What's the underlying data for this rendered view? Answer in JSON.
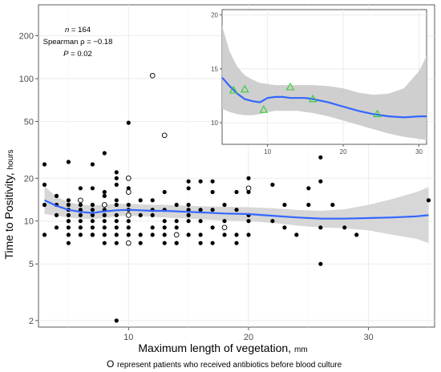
{
  "chart_data": [
    {
      "type": "scatter",
      "scale_y": "log",
      "xlim": [
        2.5,
        35.5
      ],
      "ylim": [
        1.8,
        330
      ],
      "x_ticks": [
        10,
        20,
        30
      ],
      "y_ticks": [
        2,
        5,
        10,
        20,
        50,
        100,
        200
      ],
      "xlabel": "Maximum length of vegetation,",
      "xlabel_unit": "mm",
      "ylabel": "Time to Positivity,",
      "ylabel_unit": "hours",
      "grid": true,
      "annotation": {
        "n": "n = 164",
        "rho": "Spearman ρ = −0.18",
        "p": "P = 0.02"
      },
      "footnote": {
        "symbol": "O",
        "text": "represent patients who received antibiotics before blood culture"
      },
      "series": [
        {
          "marker": "filled-circle",
          "points": [
            [
              3,
              25
            ],
            [
              3,
              18
            ],
            [
              3,
              13
            ],
            [
              3,
              8
            ],
            [
              4,
              9
            ],
            [
              4,
              15
            ],
            [
              4,
              11
            ],
            [
              4,
              13
            ],
            [
              5,
              14
            ],
            [
              5,
              26
            ],
            [
              5,
              12
            ],
            [
              5,
              10
            ],
            [
              5,
              8
            ],
            [
              5,
              13
            ],
            [
              5,
              11
            ],
            [
              5,
              9
            ],
            [
              5,
              7
            ],
            [
              5,
              10
            ],
            [
              6,
              14
            ],
            [
              6,
              11
            ],
            [
              6,
              9
            ],
            [
              6,
              13
            ],
            [
              6,
              12
            ],
            [
              6,
              10
            ],
            [
              6,
              8
            ],
            [
              6,
              17
            ],
            [
              7,
              25
            ],
            [
              7,
              17
            ],
            [
              7,
              11
            ],
            [
              7,
              9
            ],
            [
              7,
              13
            ],
            [
              7,
              8
            ],
            [
              7,
              10
            ],
            [
              7,
              12
            ],
            [
              7,
              8
            ],
            [
              8,
              30
            ],
            [
              8,
              16
            ],
            [
              8,
              13
            ],
            [
              8,
              11
            ],
            [
              8,
              9
            ],
            [
              8,
              10
            ],
            [
              8,
              7
            ],
            [
              8,
              12
            ],
            [
              8,
              15
            ],
            [
              8,
              8
            ],
            [
              9,
              22
            ],
            [
              9,
              20
            ],
            [
              9,
              18
            ],
            [
              9,
              14
            ],
            [
              9,
              10
            ],
            [
              9,
              9
            ],
            [
              9,
              13
            ],
            [
              9,
              11
            ],
            [
              9,
              2
            ],
            [
              9,
              7
            ],
            [
              9,
              8
            ],
            [
              10,
              49
            ],
            [
              10,
              17
            ],
            [
              10,
              13
            ],
            [
              10,
              12
            ],
            [
              10,
              10
            ],
            [
              10,
              8
            ],
            [
              10,
              9
            ],
            [
              10,
              11
            ],
            [
              10,
              7
            ],
            [
              11,
              14
            ],
            [
              11,
              11
            ],
            [
              11,
              8
            ],
            [
              11,
              7
            ],
            [
              12,
              12
            ],
            [
              12,
              9
            ],
            [
              12,
              8
            ],
            [
              12,
              14
            ],
            [
              12,
              11
            ],
            [
              13,
              16
            ],
            [
              13,
              12
            ],
            [
              13,
              10
            ],
            [
              13,
              9
            ],
            [
              13,
              7
            ],
            [
              13,
              8
            ],
            [
              14,
              13
            ],
            [
              14,
              9
            ],
            [
              14,
              7
            ],
            [
              14,
              10
            ],
            [
              14,
              8
            ],
            [
              14,
              7
            ],
            [
              15,
              19
            ],
            [
              15,
              17
            ],
            [
              15,
              13
            ],
            [
              15,
              12
            ],
            [
              15,
              10
            ],
            [
              15,
              8
            ],
            [
              15,
              11
            ],
            [
              16,
              19
            ],
            [
              16,
              12
            ],
            [
              16,
              10
            ],
            [
              16,
              8
            ],
            [
              16,
              7
            ],
            [
              17,
              19
            ],
            [
              17,
              16
            ],
            [
              17,
              12
            ],
            [
              17,
              9
            ],
            [
              17,
              7
            ],
            [
              18,
              13
            ],
            [
              18,
              10
            ],
            [
              18,
              8
            ],
            [
              19,
              16
            ],
            [
              19,
              12
            ],
            [
              19,
              8
            ],
            [
              19,
              7
            ],
            [
              20,
              20
            ],
            [
              20,
              16
            ],
            [
              20,
              11
            ],
            [
              20,
              10
            ],
            [
              20,
              8
            ],
            [
              22,
              18
            ],
            [
              22,
              10
            ],
            [
              23,
              13
            ],
            [
              23,
              9
            ],
            [
              24,
              8
            ],
            [
              25,
              17
            ],
            [
              25,
              13
            ],
            [
              26,
              28
            ],
            [
              26,
              19
            ],
            [
              26,
              9
            ],
            [
              26,
              5
            ],
            [
              27,
              13
            ],
            [
              28,
              9
            ],
            [
              29,
              8
            ],
            [
              35,
              14
            ]
          ]
        },
        {
          "marker": "open-circle",
          "points": [
            [
              6,
              14
            ],
            [
              8,
              13
            ],
            [
              10,
              20
            ],
            [
              10,
              16
            ],
            [
              10,
              11
            ],
            [
              10,
              7
            ],
            [
              12,
              105
            ],
            [
              13,
              40
            ],
            [
              14,
              8
            ],
            [
              18,
              9
            ],
            [
              20,
              17
            ]
          ]
        },
        {
          "type": "line",
          "name": "smooth",
          "x": [
            3,
            4,
            5,
            6,
            7,
            8,
            9,
            10,
            11,
            12,
            13,
            14,
            15,
            16,
            18,
            20,
            22,
            24,
            26,
            28,
            30,
            32,
            34,
            35
          ],
          "y": [
            14,
            12.8,
            12.0,
            11.6,
            11.4,
            11.7,
            11.9,
            12.0,
            11.9,
            11.8,
            11.8,
            11.7,
            11.6,
            11.5,
            11.3,
            11.2,
            10.9,
            10.6,
            10.4,
            10.4,
            10.5,
            10.6,
            10.8,
            11.0
          ]
        },
        {
          "type": "area",
          "name": "confidence band",
          "x": [
            3,
            4,
            5,
            6,
            7,
            8,
            9,
            10,
            11,
            12,
            13,
            14,
            15,
            16,
            18,
            20,
            22,
            24,
            26,
            28,
            30,
            32,
            34,
            35
          ],
          "upper": [
            17.5,
            14.8,
            13.6,
            13.0,
            12.9,
            13.0,
            13.2,
            13.2,
            13.1,
            13.0,
            13.0,
            12.9,
            12.8,
            12.7,
            12.6,
            12.5,
            12.3,
            12.0,
            11.8,
            12.1,
            13.0,
            14.3,
            16.0,
            17.3
          ],
          "lower": [
            11.2,
            10.9,
            10.6,
            10.4,
            10.3,
            10.5,
            10.8,
            10.9,
            10.8,
            10.7,
            10.6,
            10.5,
            10.4,
            10.3,
            10.1,
            10.0,
            9.7,
            9.3,
            9.0,
            8.9,
            8.6,
            8.0,
            7.5,
            7.0
          ]
        }
      ]
    },
    {
      "type": "line",
      "xlim": [
        4,
        31
      ],
      "ylim": [
        8,
        20.5
      ],
      "x_ticks": [
        10,
        20,
        30
      ],
      "y_ticks": [
        10,
        15,
        20
      ],
      "grid": true,
      "series": [
        {
          "marker": "triangle",
          "color": "#33cc33",
          "x": [
            5.5,
            7,
            9.5,
            13,
            16,
            24.5
          ],
          "y": [
            13.0,
            13.1,
            11.2,
            13.3,
            12.2,
            10.8
          ]
        },
        {
          "type": "line",
          "name": "smooth",
          "x": [
            4,
            5,
            6,
            7,
            8,
            9,
            10,
            11,
            12,
            13,
            14,
            15,
            16,
            18,
            20,
            22,
            24,
            26,
            28,
            30,
            31
          ],
          "y": [
            14.2,
            13.4,
            12.7,
            12.2,
            12.0,
            11.9,
            12.3,
            12.4,
            12.4,
            12.3,
            12.3,
            12.3,
            12.2,
            11.9,
            11.5,
            11.1,
            10.8,
            10.6,
            10.5,
            10.6,
            10.6
          ]
        },
        {
          "type": "area",
          "name": "confidence band",
          "x": [
            4,
            5,
            6,
            7,
            8,
            9,
            10,
            11,
            12,
            13,
            14,
            15,
            16,
            18,
            20,
            22,
            24,
            26,
            28,
            30,
            31
          ],
          "upper": [
            19.0,
            16.6,
            15.2,
            14.4,
            14.0,
            13.7,
            13.6,
            13.5,
            13.5,
            13.5,
            13.5,
            13.5,
            13.5,
            13.4,
            13.2,
            12.8,
            12.6,
            12.7,
            13.2,
            14.8,
            16.2
          ],
          "lower": [
            11.3,
            11.0,
            10.8,
            10.7,
            10.7,
            10.8,
            11.0,
            11.1,
            11.1,
            11.1,
            11.1,
            11.0,
            10.9,
            10.6,
            10.2,
            9.8,
            9.4,
            9.0,
            8.7,
            8.5,
            8.4
          ]
        }
      ]
    }
  ]
}
